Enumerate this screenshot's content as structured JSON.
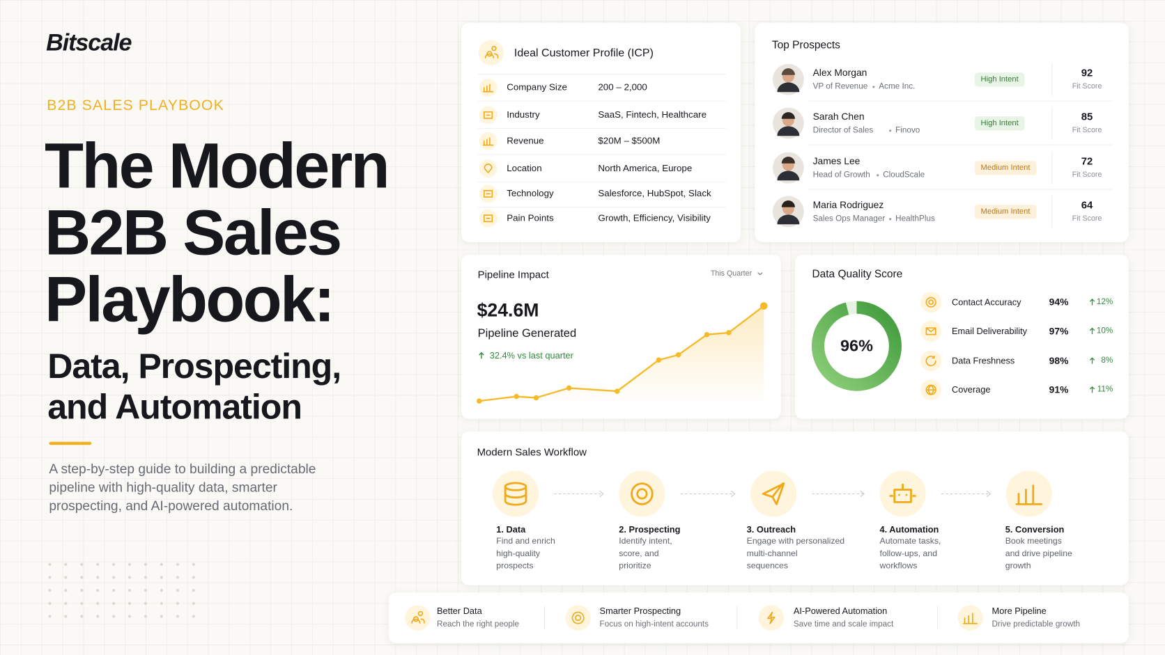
{
  "brand": "Bitscale",
  "hero": {
    "kicker": "B2B SALES PLAYBOOK",
    "title_lines": [
      "The Modern",
      "B2B Sales",
      "Playbook:"
    ],
    "subtitle_lines": [
      "Data, Prospecting,",
      "and Automation"
    ],
    "description_lines": [
      "A step-by-step guide to building a predictable",
      "pipeline with high-quality data, smarter",
      "prospecting, and AI-powered automation."
    ]
  },
  "icp": {
    "title": "Ideal Customer Profile (ICP)",
    "rows": [
      {
        "label": "Company Size",
        "value": "200 – 2,000"
      },
      {
        "label": "Industry",
        "value": "SaaS, Fintech, Healthcare"
      },
      {
        "label": "Revenue",
        "value": "$20M – $500M"
      },
      {
        "label": "Location",
        "value": "North America, Europe"
      },
      {
        "label": "Technology",
        "value": "Salesforce, HubSpot, Slack"
      },
      {
        "label": "Pain Points",
        "value": "Growth, Efficiency, Visibility"
      }
    ]
  },
  "prospects": {
    "title": "Top Prospects",
    "items": [
      {
        "name": "Alex Morgan",
        "role": "VP of Revenue",
        "company": "Acme Inc.",
        "intent": "High Intent",
        "score": "92",
        "score_label": "Fit Score"
      },
      {
        "name": "Sarah Chen",
        "role": "Director of Sales",
        "company": "Finovo",
        "intent": "High Intent",
        "score": "85",
        "score_label": "Fit Score"
      },
      {
        "name": "James Lee",
        "role": "Head of Growth",
        "company": "CloudScale",
        "intent": "Medium Intent",
        "score": "72",
        "score_label": "Fit Score"
      },
      {
        "name": "Maria Rodriguez",
        "role": "Sales Ops Manager",
        "company": "HealthPlus",
        "intent": "Medium Intent",
        "score": "64",
        "score_label": "Fit Score"
      }
    ]
  },
  "pipeline": {
    "title": "Pipeline Impact",
    "period": "This Quarter",
    "amount": "$24.6M",
    "amount_label": "Pipeline Generated",
    "change": "32.4% vs last quarter",
    "chart_data": {
      "type": "area",
      "x": [
        0,
        1.7,
        2.6,
        4.1,
        6.3,
        8.2,
        9.1,
        10.4,
        11.4,
        13
      ],
      "values": [
        10,
        10.7,
        10.5,
        12.0,
        11.5,
        16.3,
        17.1,
        20.2,
        20.5,
        24.6
      ],
      "xlim": [
        0,
        13
      ],
      "ylim": [
        10,
        24.6
      ],
      "color": "#f6b928"
    }
  },
  "data_quality": {
    "title": "Data Quality Score",
    "score": {
      "value": 96,
      "label": "96%"
    },
    "metrics": [
      {
        "name": "Contact Accuracy",
        "value": "94%",
        "change": "12%"
      },
      {
        "name": "Email Deliverability",
        "value": "97%",
        "change": "10%"
      },
      {
        "name": "Data Freshness",
        "value": "98%",
        "change": "8%"
      },
      {
        "name": "Coverage",
        "value": "91%",
        "change": "11%"
      }
    ]
  },
  "workflow": {
    "title": "Modern Sales Workflow",
    "steps": [
      {
        "title": "1. Data",
        "lines": [
          "Find and enrich",
          "high-quality",
          "prospects"
        ]
      },
      {
        "title": "2. Prospecting",
        "lines": [
          "Identify intent,",
          "score, and",
          "prioritize"
        ]
      },
      {
        "title": "3. Outreach",
        "lines": [
          "Engage with personalized",
          "multi-channel",
          "sequences"
        ]
      },
      {
        "title": "4. Automation",
        "lines": [
          "Automate tasks,",
          "follow-ups, and",
          "workflows"
        ]
      },
      {
        "title": "5. Conversion",
        "lines": [
          "Book meetings",
          "and drive pipeline",
          "growth"
        ]
      }
    ]
  },
  "benefits": [
    {
      "title": "Better Data",
      "text": "Reach the right people"
    },
    {
      "title": "Smarter Prospecting",
      "text": "Focus on high-intent accounts"
    },
    {
      "title": "AI-Powered Automation",
      "text": "Save time and scale impact"
    },
    {
      "title": "More Pipeline",
      "text": "Drive predictable growth"
    }
  ]
}
